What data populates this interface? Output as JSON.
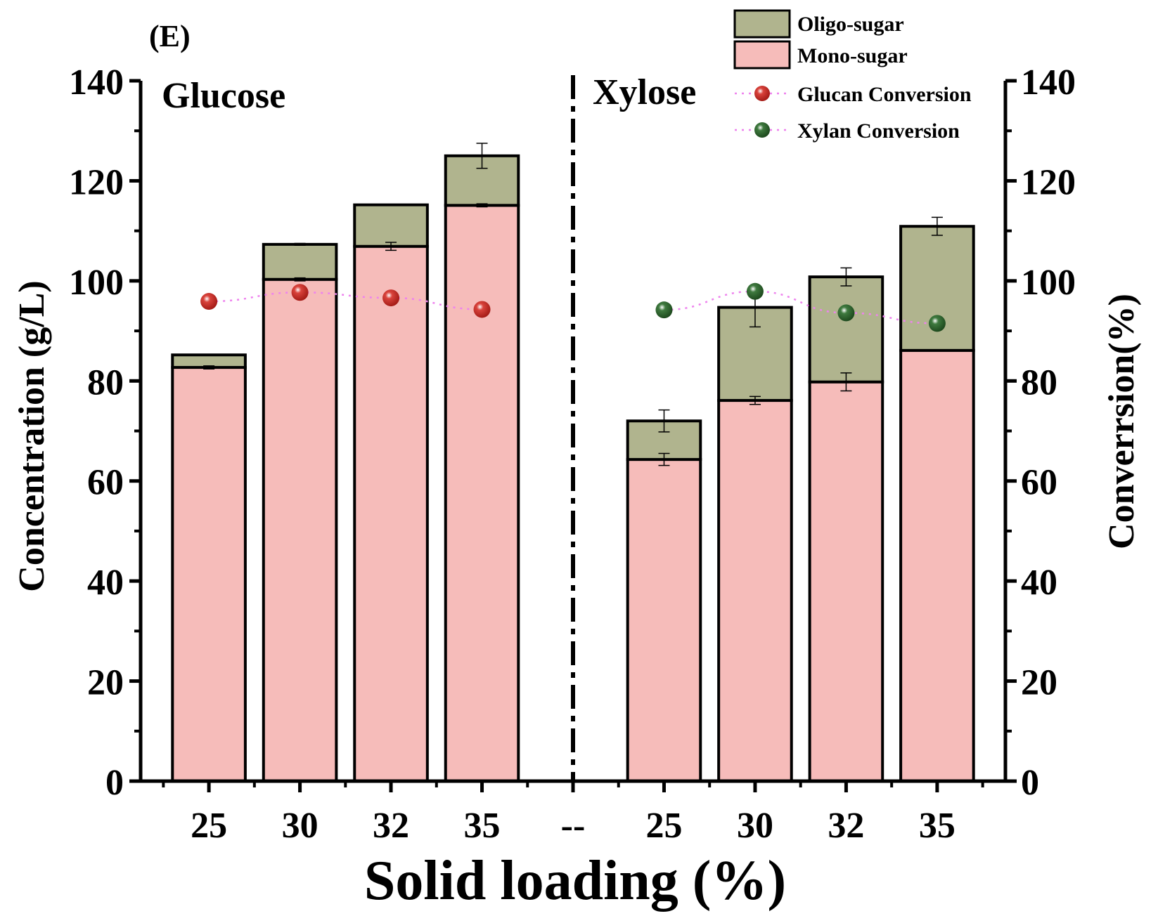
{
  "panel_label": "(E)",
  "colors": {
    "mono": "#F6BCBA",
    "oligo": "#B0B48E",
    "glucan_marker": "#A51C17",
    "xylan_marker": "#1E4A1E",
    "conversion_line": "#EE82EE",
    "axis": "#000000"
  },
  "chart_data": {
    "type": "bar",
    "subtype": "stacked bar with conversion overlay (dual y-axis)",
    "xlabel": "Solid loading (%)",
    "ylabel_left": "Concentration (g/L)",
    "ylabel_right": "Converrsion(%)",
    "ylim_left": [
      0,
      140
    ],
    "ylim_right": [
      0,
      140
    ],
    "yticks": [
      0,
      20,
      40,
      60,
      80,
      100,
      120,
      140
    ],
    "categories": [
      "25",
      "30",
      "32",
      "35",
      "--",
      "25",
      "30",
      "32",
      "35"
    ],
    "groups": [
      {
        "name": "Glucose",
        "category_indices": [
          0,
          1,
          2,
          3
        ]
      },
      {
        "name": "Xylose",
        "category_indices": [
          5,
          6,
          7,
          8
        ]
      }
    ],
    "series": [
      {
        "name": "Mono-sugar",
        "kind": "bar",
        "values": [
          82.7,
          100.3,
          106.9,
          115.1,
          null,
          64.3,
          76.1,
          79.8,
          86.1
        ],
        "errors": [
          0.3,
          0.3,
          0.8,
          0.3,
          null,
          1.2,
          0.8,
          1.8,
          0.0
        ]
      },
      {
        "name": "Oligo-sugar",
        "kind": "bar",
        "values": [
          2.5,
          7.0,
          8.3,
          9.9,
          null,
          7.7,
          18.6,
          21.0,
          24.8
        ],
        "errors": [
          0.0,
          0.2,
          0.0,
          2.5,
          null,
          2.2,
          3.9,
          1.8,
          1.8
        ]
      },
      {
        "name": "Glucan Conversion",
        "kind": "line",
        "values": [
          95.9,
          97.7,
          96.6,
          94.3,
          null,
          null,
          null,
          null,
          null
        ]
      },
      {
        "name": "Xylan Conversion",
        "kind": "line",
        "values": [
          null,
          null,
          null,
          null,
          null,
          94.2,
          97.9,
          93.6,
          91.5
        ]
      }
    ],
    "divider_after_category": 4
  }
}
